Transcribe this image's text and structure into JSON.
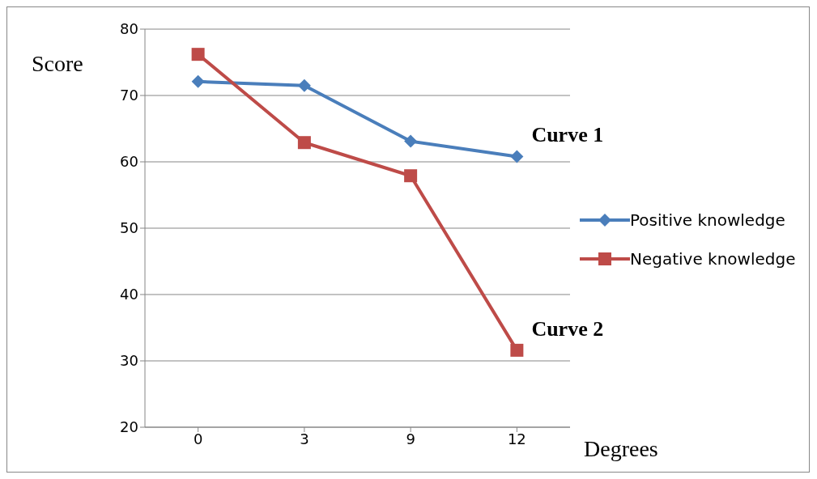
{
  "chart_data": {
    "type": "line",
    "xlabel": "Degrees",
    "ylabel": "Score",
    "categories": [
      "0",
      "3",
      "9",
      "12"
    ],
    "series": [
      {
        "name": "Positive knowledge",
        "color": "#4a7ebb",
        "marker": "diamond",
        "values": [
          72.1,
          71.5,
          63.1,
          60.8
        ]
      },
      {
        "name": "Negative knowledge",
        "color": "#be4b48",
        "marker": "square",
        "values": [
          76.2,
          62.9,
          57.9,
          31.6
        ]
      }
    ],
    "ylim": [
      20,
      80
    ],
    "yticks": [
      20,
      30,
      40,
      50,
      60,
      70,
      80
    ],
    "grid": "y",
    "legend": "right",
    "annotations": [
      "Curve 1",
      "Curve 2"
    ]
  }
}
